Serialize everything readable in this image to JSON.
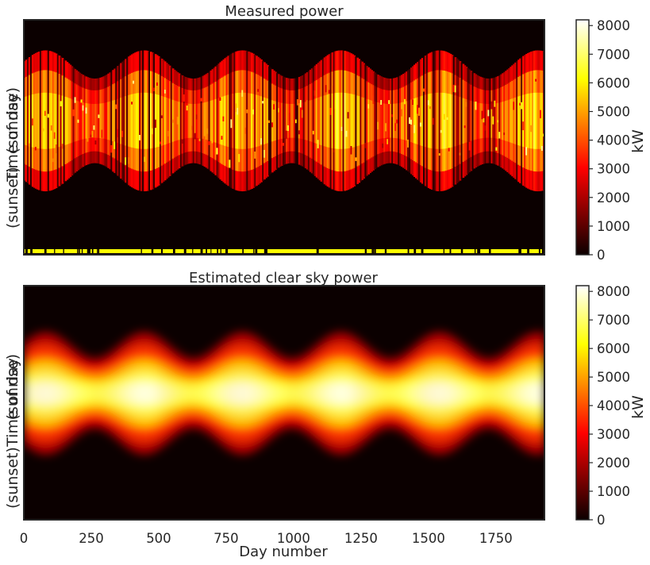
{
  "chart_data": [
    {
      "type": "heatmap",
      "title": "Measured power",
      "ylabel_lines": [
        "(sunset)",
        "Time of day",
        "(sunrise)"
      ],
      "xlim": [
        0,
        1930
      ],
      "colorbar": {
        "label": "kW",
        "min": 0,
        "max": 8200,
        "ticks": [
          "0",
          "1000",
          "2000",
          "3000",
          "4000",
          "5000",
          "6000",
          "7000",
          "8000"
        ],
        "colormap": "hot"
      },
      "description_values": {
        "seasonal_peaks_day": [
          80,
          420,
          790,
          1150,
          1510,
          1880
        ],
        "peak_kw": 7500,
        "has_missing_data_flags": true
      }
    },
    {
      "type": "heatmap",
      "title": "Estimated clear sky power",
      "ylabel_lines": [
        "(sunset)",
        "Time of day",
        "(sunrise)"
      ],
      "xlabel": "Day number",
      "xlim": [
        0,
        1930
      ],
      "xticks": [
        "0",
        "250",
        "500",
        "750",
        "1000",
        "1250",
        "1500",
        "1750"
      ],
      "colorbar": {
        "label": "kW",
        "min": 0,
        "max": 8200,
        "ticks": [
          "0",
          "1000",
          "2000",
          "3000",
          "4000",
          "5000",
          "6000",
          "7000",
          "8000"
        ],
        "colormap": "hot"
      },
      "description_values": {
        "seasonal_peaks_day": [
          80,
          420,
          790,
          1150,
          1510,
          1880
        ],
        "peak_kw": 8000
      }
    }
  ],
  "colors": {
    "axis": "#262626",
    "background": "#ffffff",
    "flag": "#ffff00"
  }
}
